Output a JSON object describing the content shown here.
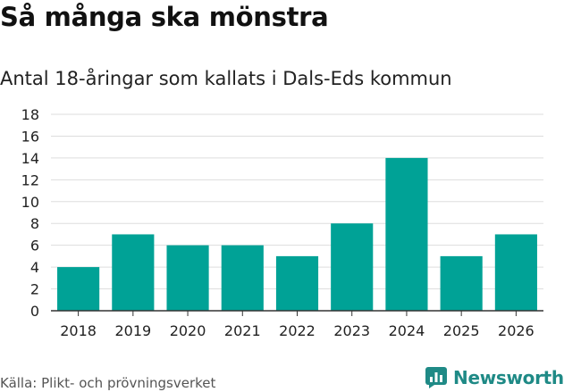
{
  "title": "Så många ska mönstra",
  "subtitle": "Antal 18-åringar som kallats i Dals-Eds kommun",
  "source": "Källa: Plikt- och prövningsverket",
  "brand": {
    "name": "Newsworthy",
    "color": "#1f8a86",
    "icon": "newsworthy-logo-icon"
  },
  "colors": {
    "bar": "#00a296",
    "grid": "#dddddd",
    "axis": "#333333"
  },
  "chart_data": {
    "type": "bar",
    "title": "Så många ska mönstra",
    "subtitle": "Antal 18-åringar som kallats i Dals-Eds kommun",
    "xlabel": "",
    "ylabel": "",
    "categories": [
      "2018",
      "2019",
      "2020",
      "2021",
      "2022",
      "2023",
      "2024",
      "2025",
      "2026"
    ],
    "values": [
      4,
      7,
      6,
      6,
      5,
      8,
      14,
      5,
      7
    ],
    "ylim": [
      0,
      18
    ],
    "yticks": [
      0,
      2,
      4,
      6,
      8,
      10,
      12,
      14,
      16,
      18
    ],
    "grid": true,
    "legend": "none"
  }
}
